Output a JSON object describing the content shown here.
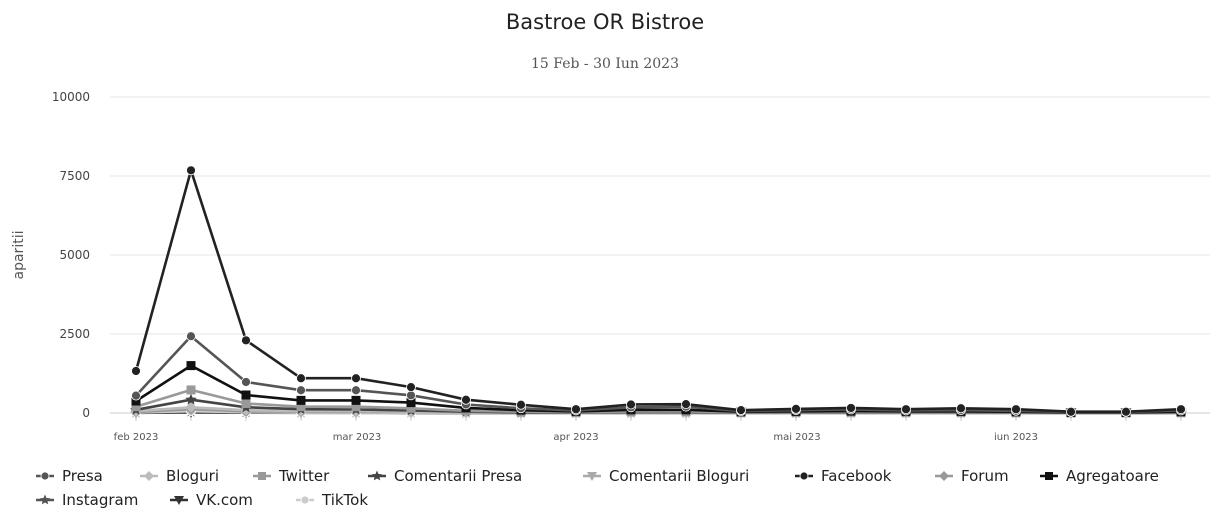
{
  "chart_data": {
    "type": "line",
    "title": "Bastroe OR Bistroe",
    "subtitle": "15 Feb - 30 Iun 2023",
    "ylabel": "aparitii",
    "xlabel": "",
    "ylim": [
      0,
      10000
    ],
    "yticks": [
      "0",
      "2500",
      "5000",
      "7500",
      "10000"
    ],
    "x_tick_labels": [
      "feb 2023",
      "mar 2023",
      "apr 2023",
      "mai 2023",
      "iun 2023"
    ],
    "grid": true,
    "legend_position": "bottom",
    "x": [
      "2023-02-15",
      "2023-02-22",
      "2023-03-01",
      "2023-03-08",
      "2023-03-15",
      "2023-03-22",
      "2023-03-29",
      "2023-04-05",
      "2023-04-12",
      "2023-04-19",
      "2023-04-26",
      "2023-05-03",
      "2023-05-10",
      "2023-05-17",
      "2023-05-24",
      "2023-05-31",
      "2023-06-07",
      "2023-06-14",
      "2023-06-21",
      "2023-06-28"
    ],
    "series": [
      {
        "name": "Presa",
        "color": "#555555",
        "marker": "circle",
        "values": [
          550,
          2430,
          980,
          720,
          720,
          560,
          270,
          150,
          80,
          180,
          200,
          60,
          90,
          110,
          80,
          90,
          70,
          30,
          30,
          80
        ]
      },
      {
        "name": "Bloguri",
        "color": "#bbbbbb",
        "marker": "diamond",
        "values": [
          60,
          180,
          90,
          60,
          60,
          40,
          20,
          10,
          5,
          15,
          15,
          5,
          8,
          10,
          8,
          8,
          5,
          3,
          3,
          6
        ]
      },
      {
        "name": "Twitter",
        "color": "#999999",
        "marker": "square",
        "values": [
          200,
          730,
          300,
          200,
          200,
          150,
          70,
          40,
          20,
          50,
          50,
          20,
          25,
          30,
          25,
          25,
          20,
          10,
          10,
          20
        ]
      },
      {
        "name": "Comentarii Presa",
        "color": "#444444",
        "marker": "star",
        "values": [
          100,
          420,
          180,
          120,
          110,
          80,
          40,
          20,
          10,
          30,
          30,
          10,
          15,
          20,
          15,
          15,
          10,
          5,
          5,
          10
        ]
      },
      {
        "name": "Comentarii Bloguri",
        "color": "#aaaaaa",
        "marker": "triangle-down",
        "values": [
          20,
          60,
          30,
          20,
          20,
          15,
          8,
          4,
          2,
          6,
          6,
          2,
          3,
          4,
          3,
          3,
          2,
          1,
          1,
          2
        ]
      },
      {
        "name": "Facebook",
        "color": "#222222",
        "marker": "circle",
        "values": [
          1330,
          7680,
          2300,
          1100,
          1100,
          820,
          420,
          260,
          120,
          270,
          280,
          90,
          130,
          160,
          120,
          150,
          120,
          40,
          40,
          120
        ]
      },
      {
        "name": "Forum",
        "color": "#999999",
        "marker": "diamond",
        "values": [
          30,
          120,
          50,
          40,
          40,
          30,
          15,
          8,
          4,
          10,
          10,
          4,
          5,
          6,
          5,
          5,
          4,
          2,
          2,
          4
        ]
      },
      {
        "name": "Agregatoare",
        "color": "#111111",
        "marker": "square",
        "values": [
          380,
          1500,
          570,
          400,
          400,
          330,
          160,
          90,
          50,
          100,
          100,
          40,
          50,
          60,
          50,
          50,
          40,
          15,
          15,
          40
        ]
      },
      {
        "name": "Instagram",
        "color": "#555555",
        "marker": "star",
        "values": [
          10,
          40,
          20,
          10,
          10,
          8,
          4,
          2,
          1,
          3,
          3,
          1,
          2,
          2,
          2,
          2,
          1,
          1,
          1,
          1
        ]
      },
      {
        "name": "VK.com",
        "color": "#333333",
        "marker": "triangle-down",
        "values": [
          5,
          20,
          10,
          5,
          5,
          4,
          2,
          1,
          1,
          2,
          2,
          1,
          1,
          1,
          1,
          1,
          1,
          0,
          0,
          1
        ]
      },
      {
        "name": "TikTok",
        "color": "#cccccc",
        "marker": "circle",
        "values": [
          15,
          60,
          25,
          15,
          15,
          10,
          5,
          3,
          2,
          4,
          4,
          2,
          2,
          3,
          2,
          2,
          2,
          1,
          1,
          2
        ]
      }
    ]
  }
}
